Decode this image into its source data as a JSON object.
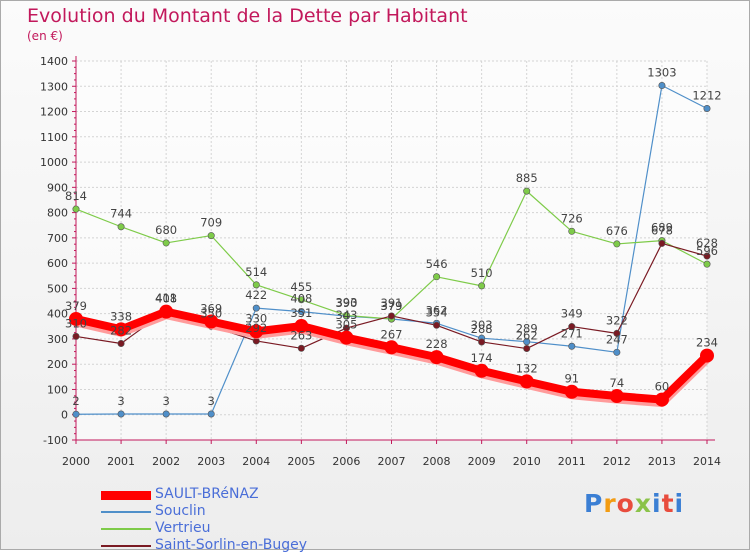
{
  "header": {
    "title": "Evolution du Montant de la Dette par Habitant",
    "unit": "(en €)"
  },
  "logo": {
    "text": "Proxiti",
    "colors": [
      "#3b7fd4",
      "#f39c12",
      "#e84c3d",
      "#8bc34a",
      "#3b7fd4",
      "#e84c3d",
      "#3b7fd4"
    ]
  },
  "chart_data": {
    "type": "line",
    "title": "Evolution du Montant de la Dette par Habitant",
    "ylabel": "(en €)",
    "xlabel": "",
    "x": [
      "2000",
      "2001",
      "2002",
      "2003",
      "2004",
      "2005",
      "2006",
      "2007",
      "2008",
      "2009",
      "2010",
      "2011",
      "2012",
      "2013",
      "2014"
    ],
    "ylim": [
      -100,
      1400
    ],
    "yticks": [
      -100,
      0,
      100,
      200,
      300,
      400,
      500,
      600,
      700,
      800,
      900,
      1000,
      1100,
      1200,
      1300,
      1400
    ],
    "grid": true,
    "legend_position": "bottom-left",
    "series": [
      {
        "name": "SAULT-BRéNAZ",
        "color": "#ff0000",
        "values": [
          379,
          338,
          408,
          369,
          330,
          351,
          305,
          267,
          228,
          174,
          132,
          91,
          74,
          60,
          234
        ],
        "labels": [
          "379",
          "338",
          "408",
          "369",
          "330",
          "351",
          "305",
          "267",
          "228",
          "174",
          "132",
          "91",
          "74",
          "60",
          "234"
        ]
      },
      {
        "name": "Souclin",
        "color": "#4f8fc9",
        "values": [
          2,
          3,
          3,
          3,
          422,
          408,
          390,
          379,
          362,
          303,
          289,
          271,
          247,
          1303,
          1212
        ],
        "labels": [
          "2",
          "3",
          "3",
          "3",
          "422",
          "408",
          "390",
          "379",
          "362",
          "303",
          "289",
          "271",
          "247",
          "1303",
          "1212"
        ]
      },
      {
        "name": "Vertrieu",
        "color": "#7ecb49",
        "values": [
          814,
          744,
          680,
          709,
          514,
          455,
          393,
          379,
          546,
          510,
          885,
          726,
          676,
          689,
          596
        ],
        "labels": [
          "814",
          "744",
          "680",
          "709",
          "514",
          "455",
          "393",
          "379",
          "546",
          "510",
          "885",
          "726",
          "676",
          "689",
          "596"
        ]
      },
      {
        "name": "Saint-Sorlin-en-Bugey",
        "color": "#7a1a23",
        "values": [
          310,
          282,
          411,
          350,
          292,
          263,
          343,
          391,
          354,
          288,
          262,
          349,
          322,
          678,
          628
        ],
        "labels": [
          "310",
          "282",
          "411",
          "350",
          "292",
          "263",
          "343",
          "391",
          "354",
          "288",
          "262",
          "349",
          "322",
          "678",
          "628"
        ]
      }
    ]
  }
}
